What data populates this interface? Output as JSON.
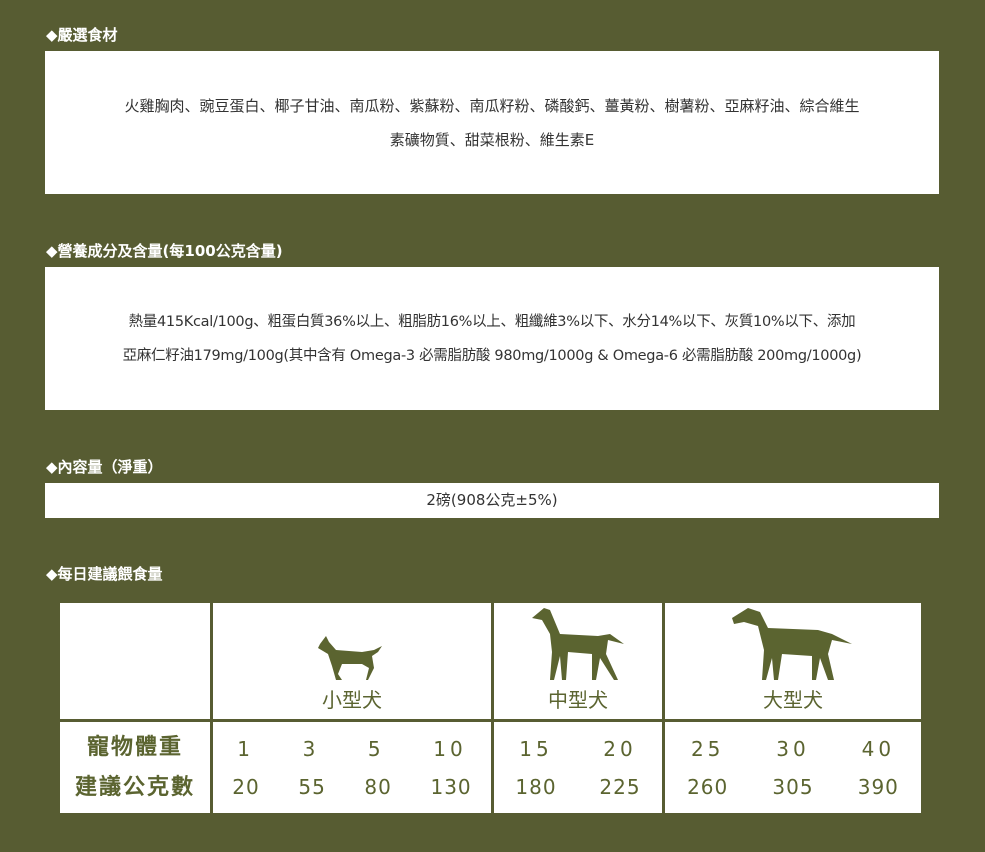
{
  "sections": [
    {
      "title": "◆嚴選食材",
      "lines": [
        "火雞胸肉、豌豆蛋白、椰子甘油、南瓜粉、紫蘇粉、南瓜籽粉、磷酸鈣、薑黃粉、樹薯粉、亞麻籽油、綜合維生",
        "素礦物質、甜菜根粉、維生素E"
      ]
    },
    {
      "title": "◆營養成分及含量(每100公克含量)",
      "lines": [
        "熱量415Kcal/100g、粗蛋白質36%以上、粗脂肪16%以上、粗纖維3%以下、水分14%以下、灰質10%以下、添加",
        "亞麻仁籽油179mg/100g(其中含有 Omega-3 必需脂肪酸 980mg/1000g & Omega-6 必需脂肪酸 200mg/1000g)"
      ]
    },
    {
      "title": "◆內容量（淨重）",
      "lines": [
        "2磅(908公克±5%)"
      ]
    },
    {
      "title": "◆每日建議餵食量"
    }
  ],
  "table": {
    "row_labels": [
      "寵物體重",
      "建議公克數"
    ],
    "groups": [
      {
        "name": "小型犬",
        "weights": [
          "1",
          "3",
          "5",
          "10"
        ],
        "grams": [
          "20",
          "55",
          "80",
          "130"
        ]
      },
      {
        "name": "中型犬",
        "weights": [
          "15",
          "20"
        ],
        "grams": [
          "180",
          "225"
        ]
      },
      {
        "name": "大型犬",
        "weights": [
          "25",
          "30",
          "40"
        ],
        "grams": [
          "260",
          "305",
          "390"
        ]
      }
    ]
  },
  "colors": {
    "background": "#575c32",
    "table_text": "#5b6430"
  }
}
